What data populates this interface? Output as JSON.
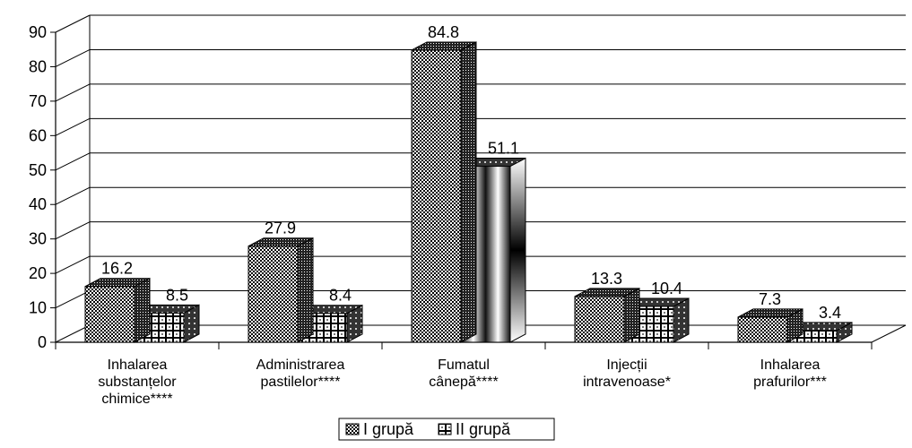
{
  "chart_data": {
    "type": "bar",
    "title": "",
    "xlabel": "",
    "ylabel": "",
    "ylim": [
      0,
      90
    ],
    "yticks": [
      "0",
      "10",
      "20",
      "30",
      "40",
      "50",
      "60",
      "70",
      "80",
      "90"
    ],
    "categories": [
      [
        "Inhalarea",
        "substanțelor",
        "chimice****"
      ],
      [
        "Administrarea",
        "pastilelor****"
      ],
      [
        "Fumatul",
        "cânepă****"
      ],
      [
        "Injecții",
        "intravenoase*"
      ],
      [
        "Inhalarea",
        "prafurilor***"
      ]
    ],
    "series": [
      {
        "name": "I grupă",
        "values": [
          16.2,
          27.9,
          84.8,
          13.3,
          7.3
        ],
        "labels": [
          "16.2",
          "27.9",
          "84.8",
          "13.3",
          "7.3"
        ]
      },
      {
        "name": "II grupă",
        "values": [
          8.5,
          8.4,
          51.1,
          10.4,
          3.4
        ],
        "labels": [
          "8.5",
          "8.4",
          "51.1",
          "10.4",
          "3.4"
        ]
      }
    ],
    "grid": true,
    "legend": "bottom"
  }
}
